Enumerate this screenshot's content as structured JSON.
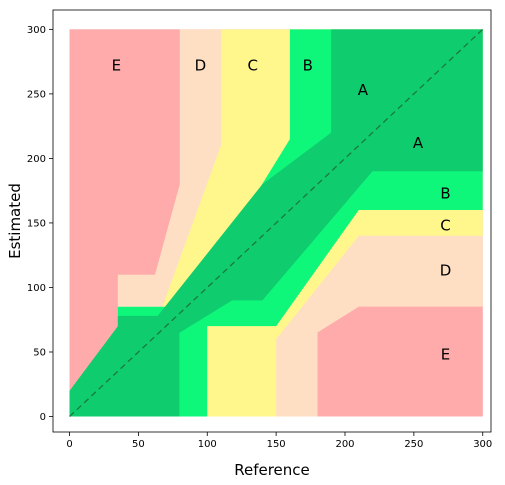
{
  "chart_data": {
    "type": "area",
    "title": "",
    "xlabel": "Reference",
    "ylabel": "Estimated",
    "xlim": [
      -12,
      306
    ],
    "ylim": [
      -12,
      315
    ],
    "xticks": [
      0,
      50,
      100,
      150,
      200,
      250,
      300
    ],
    "yticks": [
      0,
      50,
      100,
      150,
      200,
      250,
      300
    ],
    "grid": false,
    "legend": "none",
    "colors": {
      "A": "#0fcc6e",
      "B": "#0ff77a",
      "C": "#fff78c",
      "D": "#ffdfc4",
      "E": "#ffabab",
      "diagonal": "#1a7a3a"
    },
    "regions": [
      {
        "zone": "E",
        "points": [
          [
            0,
            0
          ],
          [
            0,
            300
          ],
          [
            300,
            300
          ],
          [
            300,
            0
          ]
        ]
      },
      {
        "zone": "D",
        "points": [
          [
            80,
            300
          ],
          [
            80,
            180
          ],
          [
            62,
            110
          ],
          [
            35,
            110
          ],
          [
            35,
            75
          ],
          [
            80,
            75
          ],
          [
            80,
            0
          ],
          [
            180,
            0
          ],
          [
            180,
            65
          ],
          [
            210,
            85
          ],
          [
            300,
            85
          ],
          [
            300,
            300
          ]
        ]
      },
      {
        "zone": "C",
        "points": [
          [
            110,
            300
          ],
          [
            110,
            210
          ],
          [
            64,
            75
          ],
          [
            35,
            75
          ],
          [
            35,
            70
          ],
          [
            80,
            70
          ],
          [
            80,
            0
          ],
          [
            150,
            0
          ],
          [
            150,
            60
          ],
          [
            210,
            140
          ],
          [
            300,
            140
          ],
          [
            300,
            300
          ]
        ]
      },
      {
        "zone": "B",
        "points": [
          [
            160,
            300
          ],
          [
            160,
            215
          ],
          [
            85,
            85
          ],
          [
            35,
            85
          ],
          [
            35,
            70
          ],
          [
            80,
            70
          ],
          [
            80,
            0
          ],
          [
            100,
            0
          ],
          [
            100,
            70
          ],
          [
            150,
            70
          ],
          [
            210,
            160
          ],
          [
            300,
            160
          ],
          [
            300,
            300
          ]
        ]
      },
      {
        "zone": "A",
        "points": [
          [
            190,
            300
          ],
          [
            190,
            220
          ],
          [
            140,
            180
          ],
          [
            64,
            78
          ],
          [
            35,
            78
          ],
          [
            35,
            70
          ],
          [
            0,
            20
          ],
          [
            0,
            0
          ],
          [
            80,
            0
          ],
          [
            80,
            65
          ],
          [
            118,
            90
          ],
          [
            140,
            90
          ],
          [
            220,
            190
          ],
          [
            300,
            190
          ],
          [
            300,
            300
          ]
        ]
      },
      {
        "zone": "E",
        "points": [
          [
            0,
            300
          ],
          [
            80,
            300
          ],
          [
            80,
            180
          ],
          [
            62,
            110
          ],
          [
            35,
            110
          ],
          [
            35,
            70
          ],
          [
            0,
            20
          ]
        ]
      },
      {
        "zone": "E",
        "points": [
          [
            180,
            0
          ],
          [
            300,
            0
          ],
          [
            300,
            85
          ],
          [
            210,
            85
          ],
          [
            180,
            65
          ]
        ]
      },
      {
        "zone": "C",
        "points": [
          [
            100,
            0
          ],
          [
            150,
            0
          ],
          [
            150,
            70
          ],
          [
            100,
            70
          ]
        ]
      }
    ],
    "labels": [
      {
        "text": "E",
        "x": 34,
        "y": 272
      },
      {
        "text": "D",
        "x": 95,
        "y": 272
      },
      {
        "text": "C",
        "x": 133,
        "y": 272
      },
      {
        "text": "B",
        "x": 173,
        "y": 272
      },
      {
        "text": "A",
        "x": 213,
        "y": 253
      },
      {
        "text": "A",
        "x": 253,
        "y": 212
      },
      {
        "text": "B",
        "x": 273,
        "y": 173
      },
      {
        "text": "C",
        "x": 273,
        "y": 148
      },
      {
        "text": "D",
        "x": 273,
        "y": 113
      },
      {
        "text": "E",
        "x": 273,
        "y": 48
      }
    ],
    "diagonal": [
      [
        0,
        0
      ],
      [
        300,
        300
      ]
    ]
  }
}
